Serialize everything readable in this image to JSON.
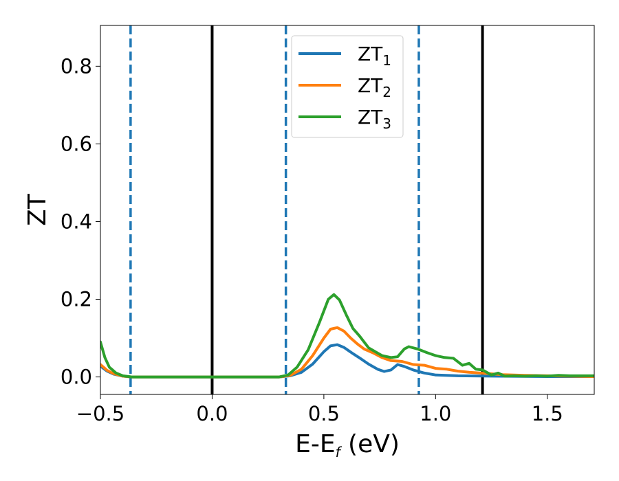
{
  "chart_data": {
    "type": "line",
    "xlabel": {
      "main": "E-E",
      "sub": "f",
      "unit": " (eV)"
    },
    "ylabel": "ZT",
    "xlim": [
      -0.5,
      1.71
    ],
    "ylim": [
      -0.045,
      0.905
    ],
    "xticks": [
      -0.5,
      0.0,
      0.5,
      1.0,
      1.5
    ],
    "xtick_labels": [
      "−0.5",
      "0.0",
      "0.5",
      "1.0",
      "1.5"
    ],
    "yticks": [
      0.0,
      0.2,
      0.4,
      0.6,
      0.8
    ],
    "ytick_labels": [
      "0.0",
      "0.2",
      "0.4",
      "0.6",
      "0.8"
    ],
    "grid": false,
    "legend_position": "top-center",
    "vlines": [
      {
        "x": -0.365,
        "style": "dashed",
        "color": "#1f77b4"
      },
      {
        "x": 0.0,
        "style": "solid",
        "color": "#000000"
      },
      {
        "x": 0.33,
        "style": "dashed",
        "color": "#1f77b4"
      },
      {
        "x": 0.925,
        "style": "dashed",
        "color": "#1f77b4"
      },
      {
        "x": 1.21,
        "style": "solid",
        "color": "#000000"
      }
    ],
    "series": [
      {
        "name": "ZT",
        "sub": "1",
        "color": "#1f77b4",
        "points": [
          [
            -0.5,
            0.028
          ],
          [
            -0.47,
            0.015
          ],
          [
            -0.44,
            0.007
          ],
          [
            -0.4,
            0.002
          ],
          [
            -0.36,
            0.0
          ],
          [
            0.3,
            0.0
          ],
          [
            0.35,
            0.003
          ],
          [
            0.4,
            0.012
          ],
          [
            0.45,
            0.033
          ],
          [
            0.5,
            0.065
          ],
          [
            0.53,
            0.08
          ],
          [
            0.56,
            0.083
          ],
          [
            0.59,
            0.076
          ],
          [
            0.63,
            0.06
          ],
          [
            0.67,
            0.045
          ],
          [
            0.7,
            0.033
          ],
          [
            0.74,
            0.02
          ],
          [
            0.77,
            0.014
          ],
          [
            0.8,
            0.018
          ],
          [
            0.83,
            0.032
          ],
          [
            0.86,
            0.027
          ],
          [
            0.9,
            0.018
          ],
          [
            0.95,
            0.01
          ],
          [
            1.0,
            0.005
          ],
          [
            1.1,
            0.003
          ],
          [
            1.25,
            0.002
          ],
          [
            1.5,
            0.001
          ],
          [
            1.71,
            0.001
          ]
        ]
      },
      {
        "name": "ZT",
        "sub": "2",
        "color": "#ff7f0e",
        "points": [
          [
            -0.5,
            0.032
          ],
          [
            -0.47,
            0.017
          ],
          [
            -0.44,
            0.008
          ],
          [
            -0.4,
            0.002
          ],
          [
            -0.36,
            0.0
          ],
          [
            0.3,
            0.0
          ],
          [
            0.35,
            0.004
          ],
          [
            0.4,
            0.02
          ],
          [
            0.45,
            0.055
          ],
          [
            0.5,
            0.1
          ],
          [
            0.53,
            0.123
          ],
          [
            0.56,
            0.127
          ],
          [
            0.59,
            0.118
          ],
          [
            0.62,
            0.1
          ],
          [
            0.65,
            0.085
          ],
          [
            0.68,
            0.072
          ],
          [
            0.72,
            0.062
          ],
          [
            0.76,
            0.05
          ],
          [
            0.8,
            0.042
          ],
          [
            0.85,
            0.04
          ],
          [
            0.9,
            0.032
          ],
          [
            0.95,
            0.03
          ],
          [
            1.0,
            0.022
          ],
          [
            1.05,
            0.02
          ],
          [
            1.1,
            0.015
          ],
          [
            1.15,
            0.012
          ],
          [
            1.2,
            0.01
          ],
          [
            1.3,
            0.006
          ],
          [
            1.4,
            0.004
          ],
          [
            1.5,
            0.003
          ],
          [
            1.6,
            0.002
          ],
          [
            1.71,
            0.001
          ]
        ]
      },
      {
        "name": "ZT",
        "sub": "3",
        "color": "#2ca02c",
        "points": [
          [
            -0.5,
            0.09
          ],
          [
            -0.48,
            0.05
          ],
          [
            -0.46,
            0.025
          ],
          [
            -0.43,
            0.01
          ],
          [
            -0.4,
            0.003
          ],
          [
            -0.36,
            0.0
          ],
          [
            0.3,
            0.0
          ],
          [
            0.34,
            0.005
          ],
          [
            0.38,
            0.025
          ],
          [
            0.43,
            0.07
          ],
          [
            0.48,
            0.14
          ],
          [
            0.52,
            0.2
          ],
          [
            0.545,
            0.212
          ],
          [
            0.57,
            0.198
          ],
          [
            0.6,
            0.16
          ],
          [
            0.63,
            0.125
          ],
          [
            0.66,
            0.105
          ],
          [
            0.7,
            0.075
          ],
          [
            0.73,
            0.065
          ],
          [
            0.76,
            0.055
          ],
          [
            0.8,
            0.05
          ],
          [
            0.83,
            0.052
          ],
          [
            0.86,
            0.072
          ],
          [
            0.88,
            0.078
          ],
          [
            0.92,
            0.072
          ],
          [
            0.96,
            0.063
          ],
          [
            1.0,
            0.055
          ],
          [
            1.04,
            0.05
          ],
          [
            1.08,
            0.048
          ],
          [
            1.12,
            0.03
          ],
          [
            1.15,
            0.035
          ],
          [
            1.18,
            0.02
          ],
          [
            1.21,
            0.018
          ],
          [
            1.25,
            0.005
          ],
          [
            1.28,
            0.01
          ],
          [
            1.31,
            0.002
          ],
          [
            1.35,
            0.003
          ],
          [
            1.4,
            0.002
          ],
          [
            1.45,
            0.003
          ],
          [
            1.5,
            0.002
          ],
          [
            1.55,
            0.004
          ],
          [
            1.6,
            0.003
          ],
          [
            1.71,
            0.003
          ]
        ]
      }
    ]
  }
}
